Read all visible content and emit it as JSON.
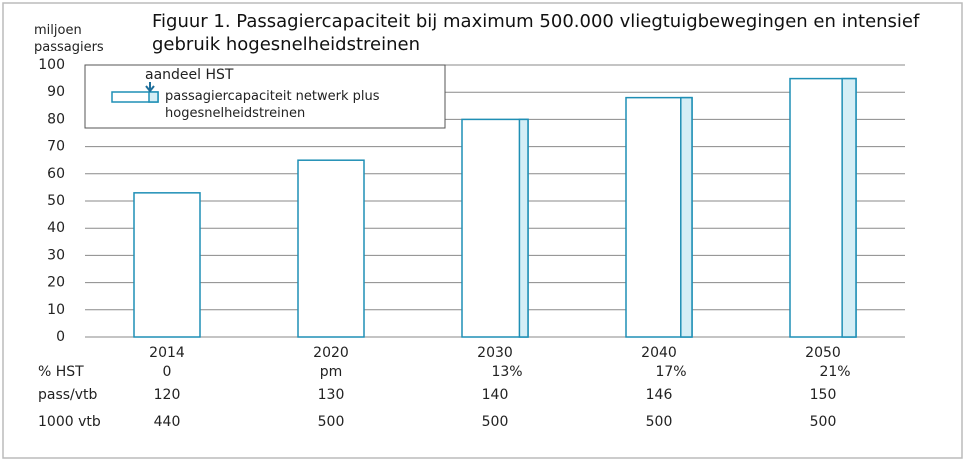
{
  "chart_data": {
    "type": "bar",
    "title": "Figuur 1. Passagiercapaciteit bij maximum 500.000 vliegtuigbewegingen en intensief gebruik hogesnelheidstreinen",
    "y_label": "miljoen passagiers",
    "annotation": "aandeel HST",
    "categories": [
      "2014",
      "2020",
      "2030",
      "2040",
      "2050"
    ],
    "series": [
      {
        "name": "passagiercapaciteit netwerk plus hogesnelheidstreinen",
        "color": "#1f8fb5",
        "values": [
          53,
          65,
          80,
          88,
          95
        ]
      }
    ],
    "hst": {
      "name": "% HST",
      "color": "#d4eef6",
      "values": [
        0,
        null,
        13,
        17,
        21
      ],
      "value_labels": [
        "0",
        "pm",
        "13%",
        "17%",
        "21%"
      ]
    },
    "ylim": [
      0,
      100
    ],
    "yticks": [
      0,
      10,
      20,
      30,
      40,
      50,
      60,
      70,
      80,
      90,
      100
    ],
    "grid": true,
    "table": {
      "rows": [
        {
          "label": "pass/vtb",
          "values": [
            "120",
            "130",
            "140",
            "146",
            "150"
          ]
        },
        {
          "label": "1000 vtb",
          "values": [
            "440",
            "500",
            "500",
            "500",
            "500"
          ]
        }
      ]
    }
  }
}
